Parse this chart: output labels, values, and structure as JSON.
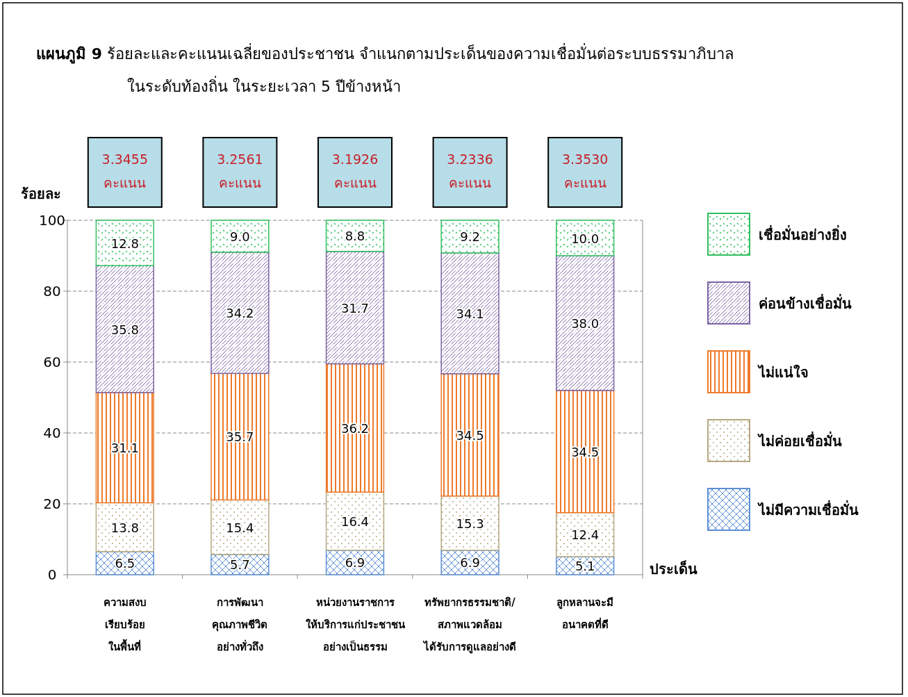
{
  "chart_data": {
    "type": "bar",
    "stacked": true,
    "title": "**แผนภูมิ 9**  ร้อยละและคะแนนเฉลี่ยของประชาชน จำแนกตามประเด็นของความเชื่อมั่นต่อระบบธรรมาภิบาล\nในระดับท้องถิ่น  ในระยะเวลา 5 ปีข้างหน้า",
    "ylabel": "ร้อยละ",
    "xlabel": "ประเด็น",
    "categories": [
      "ความสงบ\nเรียบร้อย\nในพื้นที่",
      "การพัฒนา\nคุณภาพชีวิต\nอย่างทั่วถึง",
      "หน่วยงานราชการ\nให้บริการแก่ประชาชน\nอย่างเป็นธรรม",
      "ทรัพยากรธรรมชาติ/\nสภาพแวดล้อม\nได้รับการดูแลอย่างดี",
      "ลูกหลานจะมี\nอนาคตที่ดี"
    ],
    "series": [
      {
        "name": "ไม่มีความเชื่อมั่น",
        "color": "#5b8fd6",
        "values": [
          6.5,
          5.7,
          6.9,
          6.9,
          5.1
        ],
        "value_labels": [
          "6.5",
          "5.7",
          "6.9",
          "6.9",
          "5.1"
        ]
      },
      {
        "name": "ไม่ค่อยเชื่อมั่น",
        "color": "#b5a880",
        "values": [
          13.8,
          15.4,
          16.4,
          15.3,
          12.4
        ],
        "value_labels": [
          "13.8",
          "15.4",
          "16.4",
          "15.3",
          "12.4"
        ]
      },
      {
        "name": "ไม่แน่ใจ",
        "color": "#ee7a2a",
        "values": [
          31.1,
          35.7,
          36.2,
          34.5,
          34.5
        ],
        "value_labels": [
          "31.1",
          "35.7",
          "36.2",
          "34.5",
          "34.5"
        ]
      },
      {
        "name": "ค่อนข้างเชื่อมั่น",
        "color": "#7a63a3",
        "values": [
          35.8,
          34.2,
          31.7,
          34.1,
          38.0
        ],
        "value_labels": [
          "35.8",
          "34.2",
          "31.7",
          "34.1",
          "38.0"
        ]
      },
      {
        "name": "เชื่อมั่นอย่างยิ่ง",
        "color": "#2fbf5e",
        "values": [
          12.8,
          9.0,
          8.8,
          9.2,
          10.0
        ],
        "value_labels": [
          "12.8",
          "9.0",
          "8.8",
          "9.2",
          "10.0"
        ]
      }
    ],
    "annotations": [
      "3.3455\nคะแนน",
      "3.2561\nคะแนน",
      "3.1926\nคะแนน",
      "3.2336\nคะแนน",
      "3.3530\nคะแนน"
    ],
    "ylim": [
      0,
      100
    ],
    "yticks": [
      0,
      20,
      40,
      60,
      80,
      100
    ],
    "grid": "y",
    "legend": "right"
  }
}
